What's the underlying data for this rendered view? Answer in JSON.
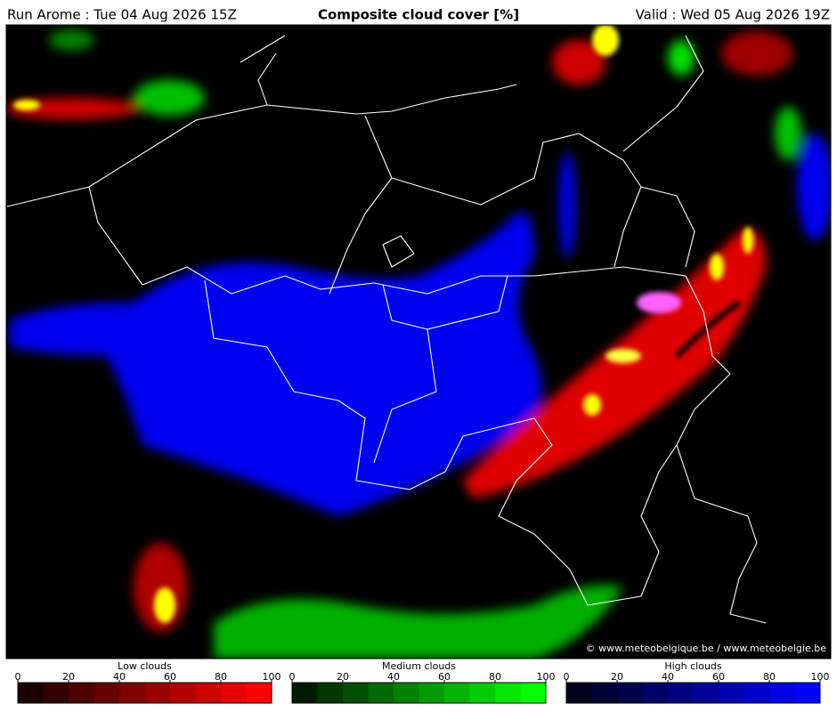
{
  "header": {
    "run": "Run Arome : Tue 04 Aug 2026 15Z",
    "title": "Composite cloud cover [%]",
    "valid": "Valid : Wed 05 Aug 2026 19Z"
  },
  "copyright": "© www.meteobelgique.be / www.meteobelgie.be",
  "colorbars": [
    {
      "title": "Low clouds",
      "ticks": [
        0,
        20,
        40,
        60,
        80,
        100
      ],
      "colors": [
        "#1c0000",
        "#360000",
        "#4f0000",
        "#690000",
        "#820000",
        "#9b0000",
        "#b40000",
        "#cd0000",
        "#e60000",
        "#ff0000"
      ]
    },
    {
      "title": "Medium clouds",
      "ticks": [
        0,
        20,
        40,
        60,
        80,
        100
      ],
      "colors": [
        "#001c00",
        "#003600",
        "#004f00",
        "#006900",
        "#008200",
        "#009b00",
        "#00b400",
        "#00cd00",
        "#00e600",
        "#00ff00"
      ]
    },
    {
      "title": "High clouds",
      "ticks": [
        0,
        20,
        40,
        60,
        80,
        100
      ],
      "colors": [
        "#00001c",
        "#000036",
        "#00004f",
        "#000069",
        "#000082",
        "#00009b",
        "#0000b4",
        "#0000cd",
        "#0000e6",
        "#0000ff"
      ]
    }
  ]
}
